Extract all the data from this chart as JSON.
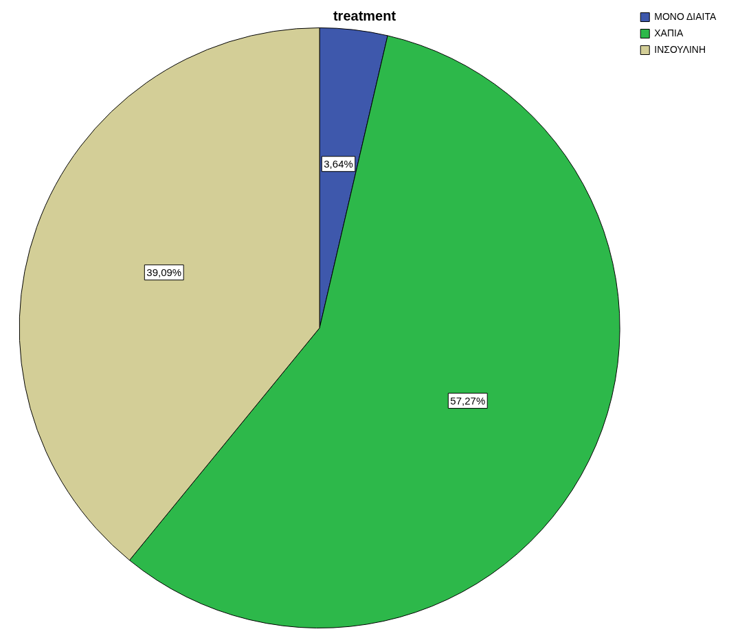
{
  "chart_data": {
    "type": "pie",
    "title": "treatment",
    "categories": [
      "ΜΟΝΟ ΔΙΑΙΤΑ",
      "ΧΑΠΙΑ",
      "ΙΝΣΟΥΛΙΝΗ"
    ],
    "values": [
      3.64,
      57.27,
      39.09
    ],
    "colors": [
      "#3e58ac",
      "#2db84a",
      "#d3ce97"
    ],
    "value_labels": [
      "3,64%",
      "57,27%",
      "39,09%"
    ],
    "legend": "top right"
  }
}
